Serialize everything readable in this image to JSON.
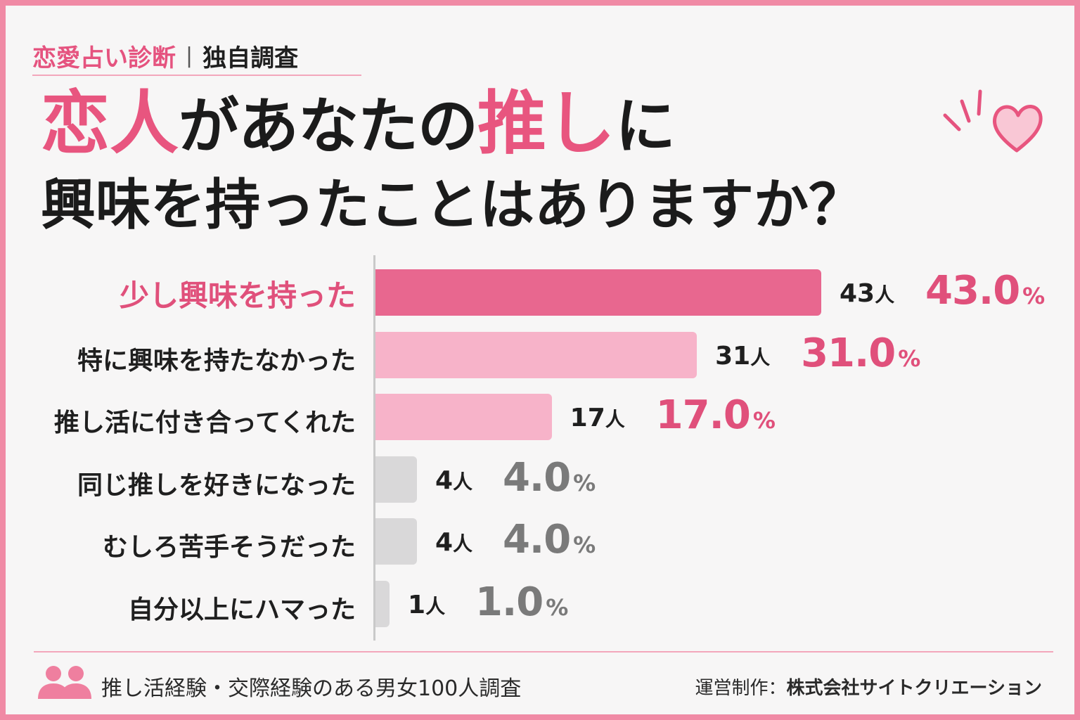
{
  "tag": {
    "category": "恋愛占い診断",
    "separator": "|",
    "type": "独自調査"
  },
  "headline": {
    "line1": [
      {
        "text": "恋人",
        "style": "pink"
      },
      {
        "text": "があなたの",
        "style": "big"
      },
      {
        "text": "推し",
        "style": "pink"
      },
      {
        "text": "に",
        "style": "big"
      }
    ],
    "line2": "興味を持ったことはありますか？"
  },
  "decoration": {
    "icon": "heart-icon",
    "color": "#f08aa5"
  },
  "chart_data": {
    "type": "bar",
    "orientation": "horizontal",
    "categories": [
      "少し興味を持った",
      "特に興味を持たなかった",
      "推し活に付き合ってくれた",
      "同じ推しを好きになった",
      "むしろ苦手そうだった",
      "自分以上にハマった"
    ],
    "counts": [
      43,
      31,
      17,
      4,
      4,
      1
    ],
    "count_unit": "人",
    "percents": [
      "43.0",
      "31.0",
      "17.0",
      "4.0",
      "4.0",
      "1.0"
    ],
    "percent_unit": "%",
    "values": [
      43.0,
      31.0,
      17.0,
      4.0,
      4.0,
      1.0
    ],
    "xlim": [
      0,
      43
    ],
    "grid": false,
    "legend": "none",
    "colors": {
      "top": "#e8678f",
      "mid": "#f7b3c9",
      "low": "#d9d8d9",
      "pct_pink": "#e0507b",
      "pct_gray": "#7a7a7a"
    }
  },
  "footer": {
    "icon": "people-icon",
    "survey": "推し活経験・交際経験のある男女100人調査",
    "credit_label": "運営制作：",
    "credit_org": "株式会社サイトクリエーション"
  }
}
